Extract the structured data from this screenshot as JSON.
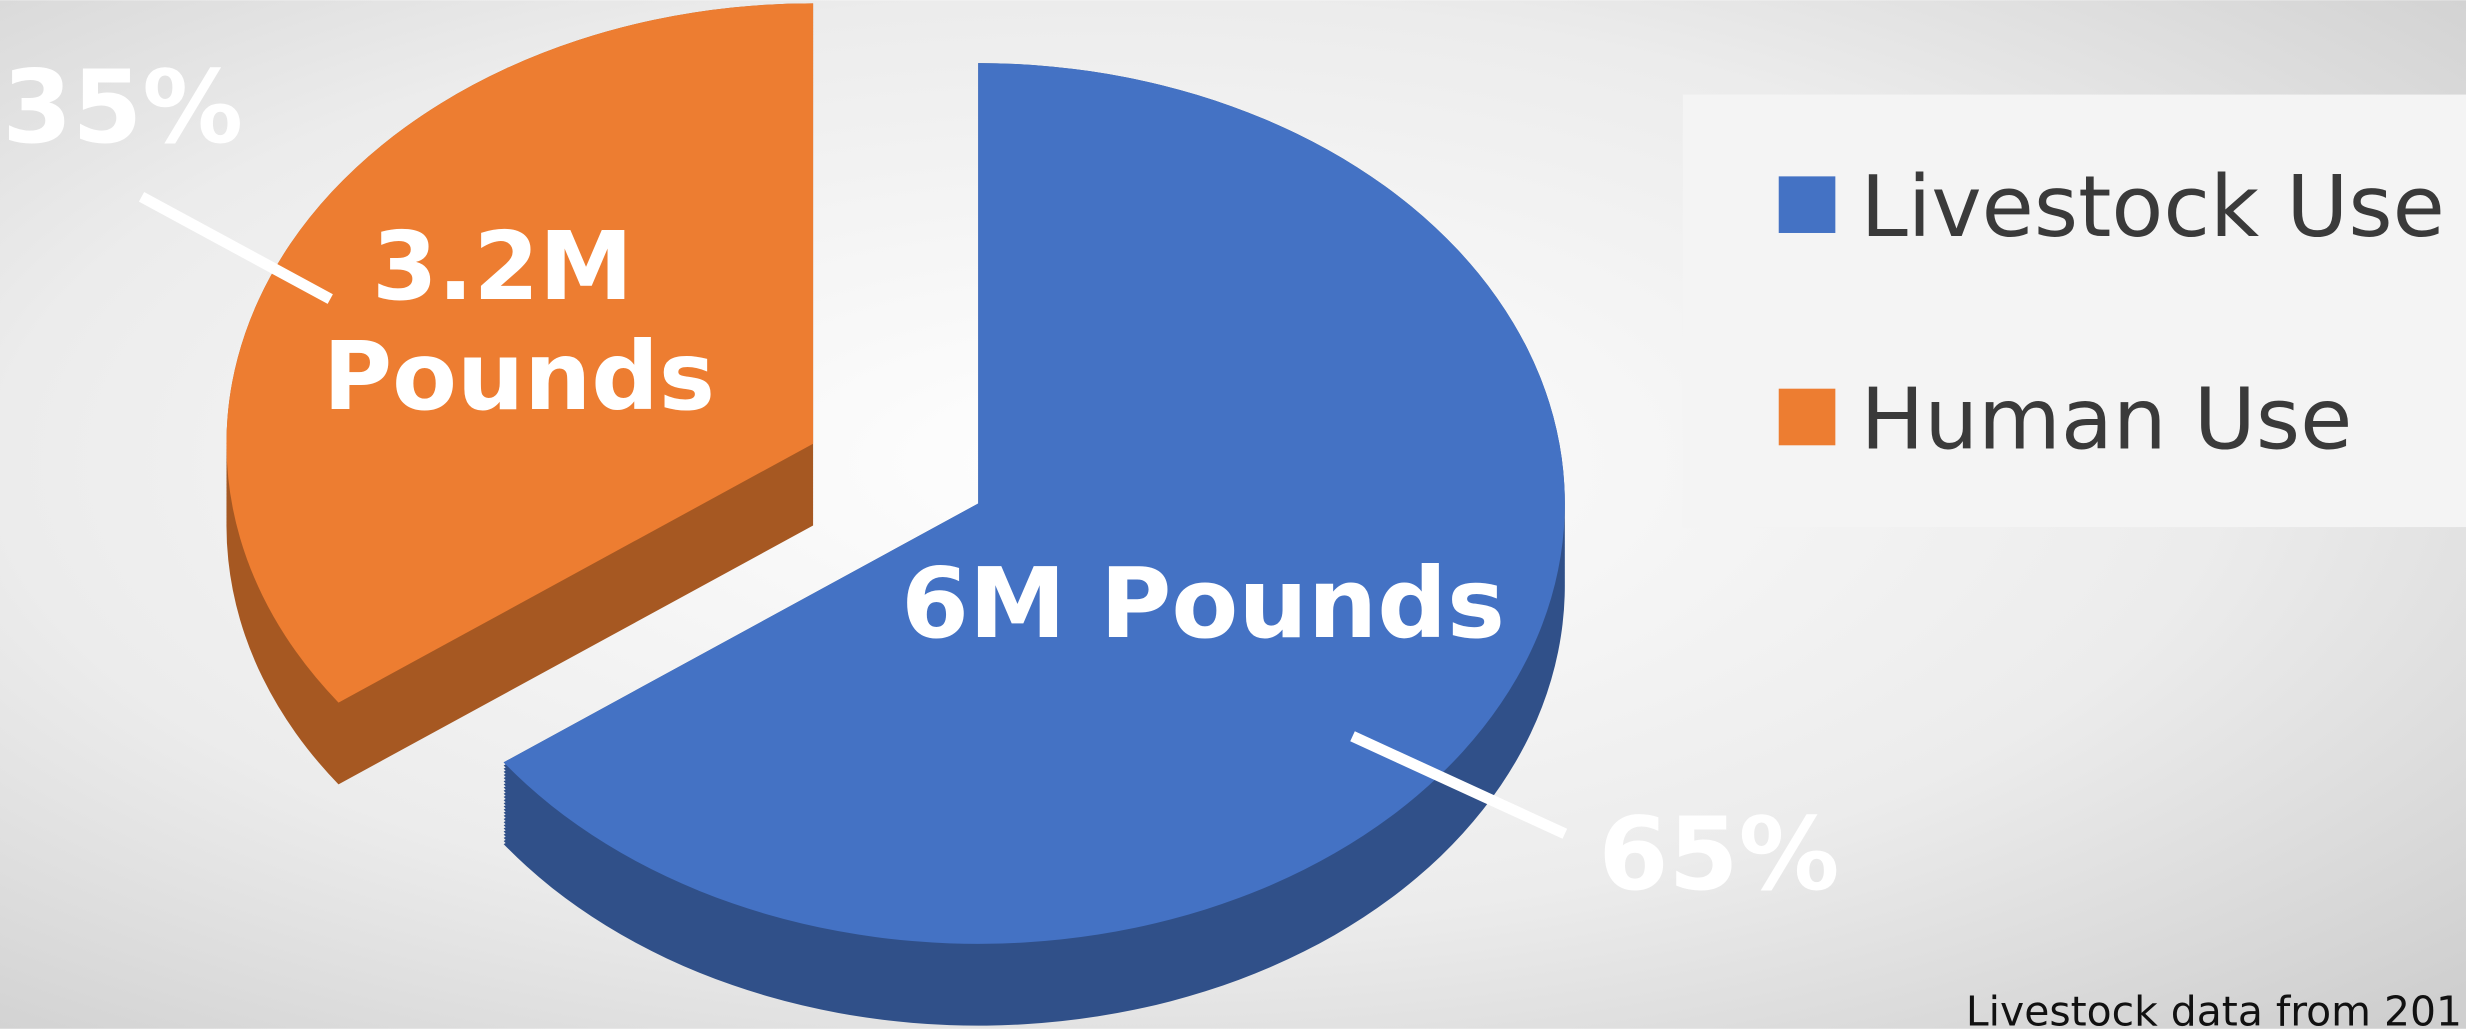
{
  "chart_data": {
    "type": "pie",
    "categories": [
      "Livestock Use",
      "Human Use"
    ],
    "values": [
      65,
      35
    ],
    "value_labels": [
      "65%",
      "35%"
    ],
    "amount_labels": [
      "6M Pounds",
      "3.2M Pounds"
    ],
    "colors": [
      "#4472c4",
      "#ed7d31"
    ],
    "legend": "right",
    "note": "Livestock data from 201"
  }
}
